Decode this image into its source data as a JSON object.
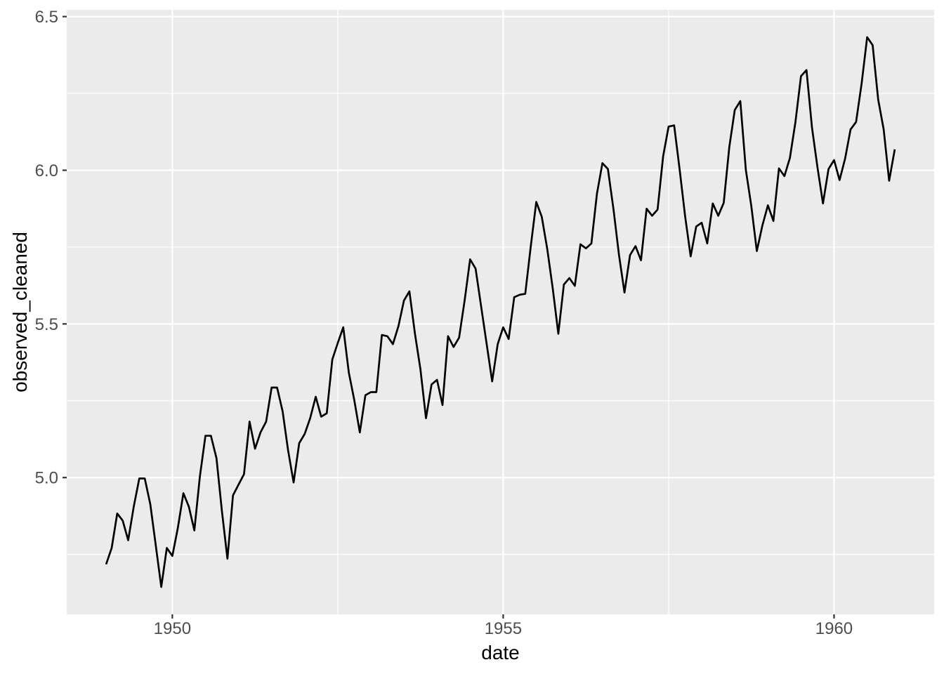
{
  "chart_data": {
    "type": "line",
    "title": "",
    "xlabel": "date",
    "ylabel": "observed_cleaned",
    "series": [
      {
        "name": "observed_cleaned",
        "color": "#000000",
        "x": [
          1949.0,
          1949.083,
          1949.167,
          1949.25,
          1949.333,
          1949.417,
          1949.5,
          1949.583,
          1949.667,
          1949.75,
          1949.833,
          1949.917,
          1950.0,
          1950.083,
          1950.167,
          1950.25,
          1950.333,
          1950.417,
          1950.5,
          1950.583,
          1950.667,
          1950.75,
          1950.833,
          1950.917,
          1951.0,
          1951.083,
          1951.167,
          1951.25,
          1951.333,
          1951.417,
          1951.5,
          1951.583,
          1951.667,
          1951.75,
          1951.833,
          1951.917,
          1952.0,
          1952.083,
          1952.167,
          1952.25,
          1952.333,
          1952.417,
          1952.5,
          1952.583,
          1952.667,
          1952.75,
          1952.833,
          1952.917,
          1953.0,
          1953.083,
          1953.167,
          1953.25,
          1953.333,
          1953.417,
          1953.5,
          1953.583,
          1953.667,
          1953.75,
          1953.833,
          1953.917,
          1954.0,
          1954.083,
          1954.167,
          1954.25,
          1954.333,
          1954.417,
          1954.5,
          1954.583,
          1954.667,
          1954.75,
          1954.833,
          1954.917,
          1955.0,
          1955.083,
          1955.167,
          1955.25,
          1955.333,
          1955.417,
          1955.5,
          1955.583,
          1955.667,
          1955.75,
          1955.833,
          1955.917,
          1956.0,
          1956.083,
          1956.167,
          1956.25,
          1956.333,
          1956.417,
          1956.5,
          1956.583,
          1956.667,
          1956.75,
          1956.833,
          1956.917,
          1957.0,
          1957.083,
          1957.167,
          1957.25,
          1957.333,
          1957.417,
          1957.5,
          1957.583,
          1957.667,
          1957.75,
          1957.833,
          1957.917,
          1958.0,
          1958.083,
          1958.167,
          1958.25,
          1958.333,
          1958.417,
          1958.5,
          1958.583,
          1958.667,
          1958.75,
          1958.833,
          1958.917,
          1959.0,
          1959.083,
          1959.167,
          1959.25,
          1959.333,
          1959.417,
          1959.5,
          1959.583,
          1959.667,
          1959.75,
          1959.833,
          1959.917,
          1960.0,
          1960.083,
          1960.167,
          1960.25,
          1960.333,
          1960.417,
          1960.5,
          1960.583,
          1960.667,
          1960.75,
          1960.833,
          1960.917
        ],
        "y": [
          4.718,
          4.771,
          4.883,
          4.86,
          4.796,
          4.905,
          4.997,
          4.997,
          4.913,
          4.779,
          4.644,
          4.771,
          4.745,
          4.836,
          4.949,
          4.905,
          4.828,
          5.004,
          5.136,
          5.136,
          5.063,
          4.89,
          4.736,
          4.942,
          4.977,
          5.011,
          5.182,
          5.094,
          5.147,
          5.182,
          5.293,
          5.293,
          5.215,
          5.088,
          4.984,
          5.112,
          5.142,
          5.193,
          5.263,
          5.198,
          5.209,
          5.384,
          5.438,
          5.489,
          5.342,
          5.252,
          5.147,
          5.268,
          5.278,
          5.278,
          5.464,
          5.46,
          5.434,
          5.493,
          5.576,
          5.606,
          5.468,
          5.352,
          5.193,
          5.303,
          5.318,
          5.236,
          5.46,
          5.425,
          5.455,
          5.576,
          5.71,
          5.68,
          5.557,
          5.434,
          5.313,
          5.434,
          5.489,
          5.451,
          5.587,
          5.595,
          5.598,
          5.753,
          5.897,
          5.849,
          5.743,
          5.613,
          5.468,
          5.628,
          5.649,
          5.624,
          5.759,
          5.746,
          5.762,
          5.924,
          6.023,
          6.004,
          5.872,
          5.724,
          5.602,
          5.724,
          5.753,
          5.707,
          5.875,
          5.852,
          5.872,
          6.045,
          6.142,
          6.146,
          6.001,
          5.849,
          5.72,
          5.817,
          5.829,
          5.762,
          5.892,
          5.852,
          5.894,
          6.075,
          6.196,
          6.225,
          6.001,
          5.883,
          5.737,
          5.82,
          5.886,
          5.835,
          6.006,
          5.981,
          6.04,
          6.157,
          6.306,
          6.326,
          6.138,
          6.009,
          5.892,
          6.004,
          6.033,
          5.968,
          6.038,
          6.133,
          6.157,
          6.282,
          6.433,
          6.407,
          6.23,
          6.133,
          5.966,
          6.068
        ]
      }
    ],
    "xlim": [
      1948.404,
      1961.513
    ],
    "ylim": [
      4.555,
      6.522
    ],
    "x_major_ticks": [
      {
        "value": 1950,
        "label": "1950"
      },
      {
        "value": 1955,
        "label": "1955"
      },
      {
        "value": 1960,
        "label": "1960"
      }
    ],
    "y_major_ticks": [
      {
        "value": 5.0,
        "label": "5.0"
      },
      {
        "value": 5.5,
        "label": "5.5"
      },
      {
        "value": 6.0,
        "label": "6.0"
      },
      {
        "value": 6.5,
        "label": "6.5"
      }
    ],
    "x_minor_ticks": [
      1952.5,
      1957.5
    ],
    "y_minor_ticks": [
      4.75,
      5.25,
      5.75,
      6.25
    ],
    "grid": "on",
    "legend": "none",
    "line_width": 2.7,
    "colors": {
      "panel_background": "#EBEBEB",
      "gridline": "#FFFFFF",
      "line": "#000000",
      "tick_label": "#4D4D4D",
      "axis_title": "#000000",
      "tick_mark": "#333333",
      "page_background": "#FFFFFF"
    }
  }
}
